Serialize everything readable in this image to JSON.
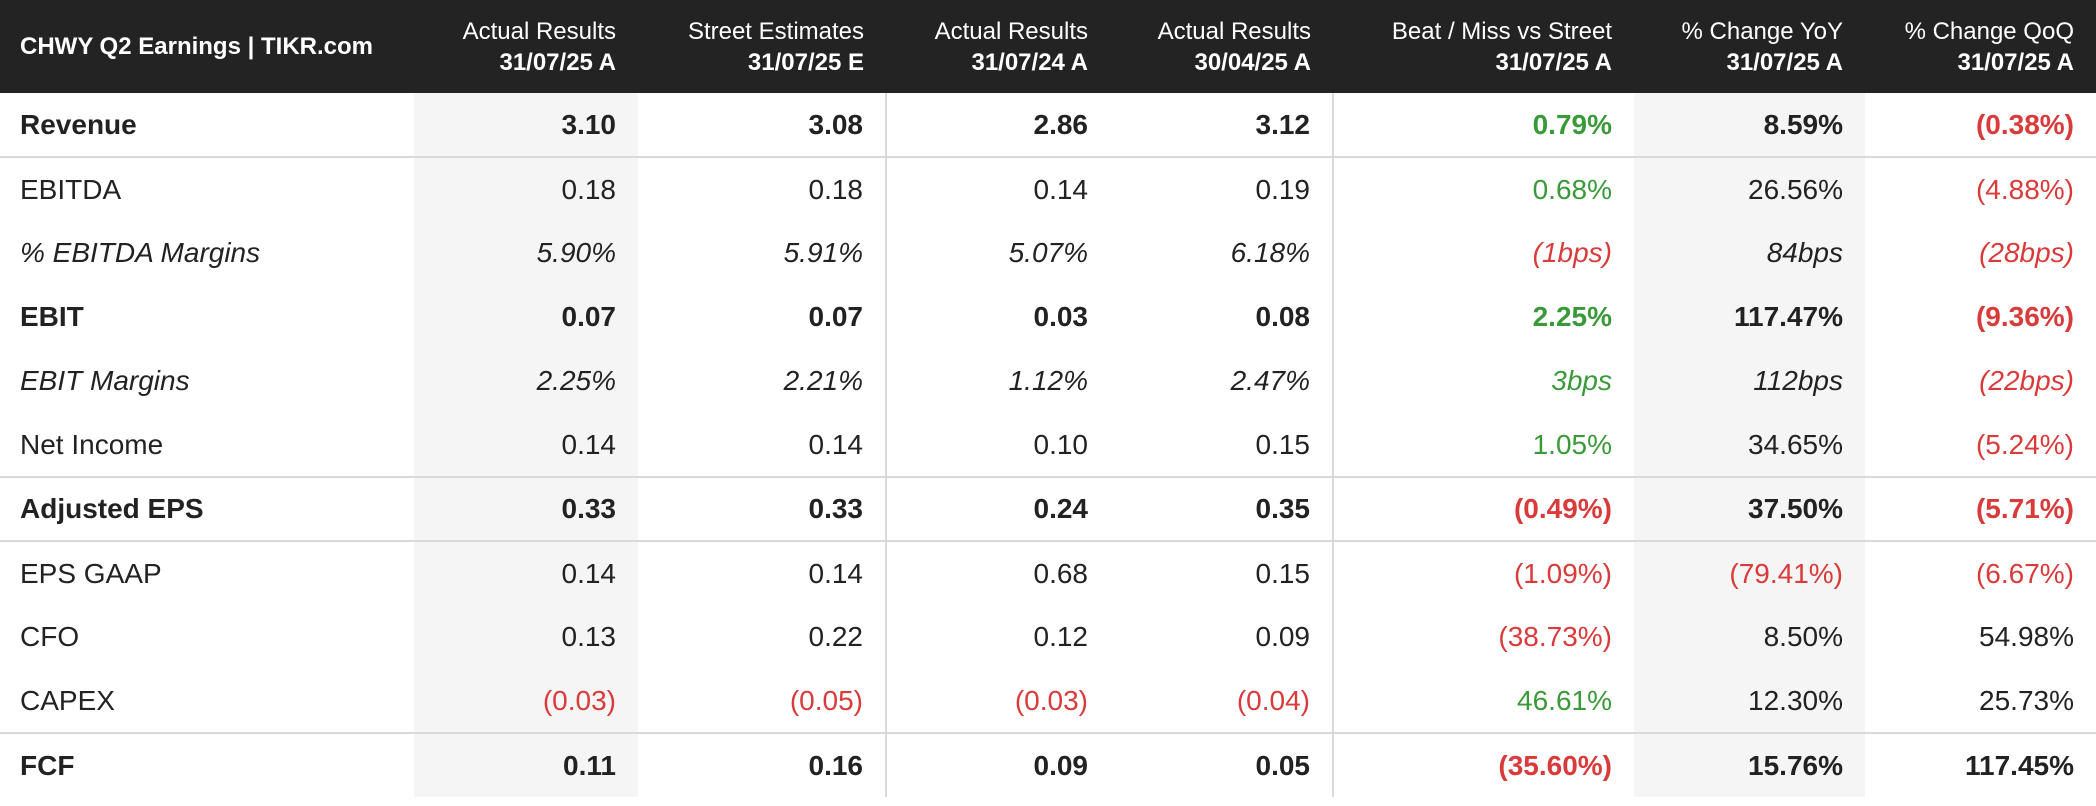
{
  "title": "CHWY Q2 Earnings | TIKR.com",
  "columns": [
    {
      "top": "Actual Results",
      "bottom": "31/07/25 A"
    },
    {
      "top": "Street Estimates",
      "bottom": "31/07/25 E"
    },
    {
      "top": "Actual Results",
      "bottom": "31/07/24 A"
    },
    {
      "top": "Actual Results",
      "bottom": "30/04/25 A"
    },
    {
      "top": "Beat / Miss vs Street",
      "bottom": "31/07/25 A"
    },
    {
      "top": "% Change YoY",
      "bottom": "31/07/25 A"
    },
    {
      "top": "% Change QoQ",
      "bottom": "31/07/25 A"
    }
  ],
  "colors": {
    "positive": "#3a9a3a",
    "negative": "#d93a3a",
    "neutral": "#222222",
    "header_bg": "#232323"
  },
  "rows": [
    {
      "label": "Revenue",
      "values": [
        "3.10",
        "3.08",
        "2.86",
        "3.12",
        "0.79%",
        "8.59%",
        "(0.38%)"
      ],
      "tones": [
        "neu",
        "neu",
        "neu",
        "neu",
        "pos",
        "neu",
        "neg"
      ]
    },
    {
      "label": "EBITDA",
      "values": [
        "0.18",
        "0.18",
        "0.14",
        "0.19",
        "0.68%",
        "26.56%",
        "(4.88%)"
      ],
      "tones": [
        "neu",
        "neu",
        "neu",
        "neu",
        "pos",
        "neu",
        "neg"
      ]
    },
    {
      "label": "% EBITDA Margins",
      "values": [
        "5.90%",
        "5.91%",
        "5.07%",
        "6.18%",
        "(1bps)",
        "84bps",
        "(28bps)"
      ],
      "tones": [
        "neu",
        "neu",
        "neu",
        "neu",
        "neg",
        "neu",
        "neg"
      ]
    },
    {
      "label": "EBIT",
      "values": [
        "0.07",
        "0.07",
        "0.03",
        "0.08",
        "2.25%",
        "117.47%",
        "(9.36%)"
      ],
      "tones": [
        "neu",
        "neu",
        "neu",
        "neu",
        "pos",
        "neu",
        "neg"
      ]
    },
    {
      "label": "EBIT Margins",
      "values": [
        "2.25%",
        "2.21%",
        "1.12%",
        "2.47%",
        "3bps",
        "112bps",
        "(22bps)"
      ],
      "tones": [
        "neu",
        "neu",
        "neu",
        "neu",
        "pos",
        "neu",
        "neg"
      ]
    },
    {
      "label": "Net Income",
      "values": [
        "0.14",
        "0.14",
        "0.10",
        "0.15",
        "1.05%",
        "34.65%",
        "(5.24%)"
      ],
      "tones": [
        "neu",
        "neu",
        "neu",
        "neu",
        "pos",
        "neu",
        "neg"
      ]
    },
    {
      "label": "Adjusted EPS",
      "values": [
        "0.33",
        "0.33",
        "0.24",
        "0.35",
        "(0.49%)",
        "37.50%",
        "(5.71%)"
      ],
      "tones": [
        "neu",
        "neu",
        "neu",
        "neu",
        "neg",
        "neu",
        "neg"
      ]
    },
    {
      "label": "EPS GAAP",
      "values": [
        "0.14",
        "0.14",
        "0.68",
        "0.15",
        "(1.09%)",
        "(79.41%)",
        "(6.67%)"
      ],
      "tones": [
        "neu",
        "neu",
        "neu",
        "neu",
        "neg",
        "neg",
        "neg"
      ]
    },
    {
      "label": "CFO",
      "values": [
        "0.13",
        "0.22",
        "0.12",
        "0.09",
        "(38.73%)",
        "8.50%",
        "54.98%"
      ],
      "tones": [
        "neu",
        "neu",
        "neu",
        "neu",
        "neg",
        "neu",
        "neu"
      ]
    },
    {
      "label": "CAPEX",
      "values": [
        "(0.03)",
        "(0.05)",
        "(0.03)",
        "(0.04)",
        "46.61%",
        "12.30%",
        "25.73%"
      ],
      "tones": [
        "neg",
        "neg",
        "neg",
        "neg",
        "pos",
        "neu",
        "neu"
      ]
    },
    {
      "label": "FCF",
      "values": [
        "0.11",
        "0.16",
        "0.09",
        "0.05",
        "(35.60%)",
        "15.76%",
        "117.45%"
      ],
      "tones": [
        "neu",
        "neu",
        "neu",
        "neu",
        "neg",
        "neu",
        "neu"
      ]
    }
  ]
}
